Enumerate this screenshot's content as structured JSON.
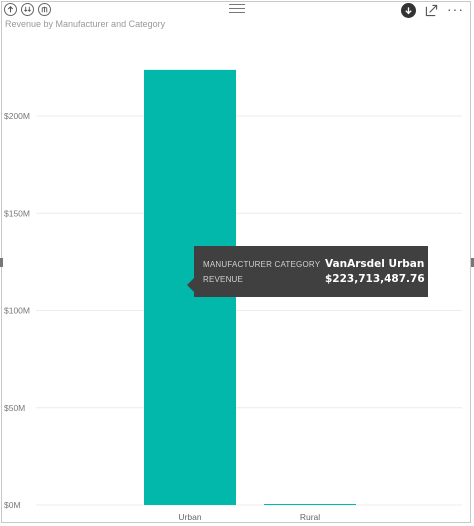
{
  "toolbar": {
    "left_icons": [
      "drill-up-icon",
      "drill-down-all-icon",
      "expand-hierarchy-icon"
    ],
    "right_icons": [
      "drill-mode-icon",
      "focus-mode-icon",
      "more-options-icon"
    ],
    "more_label": "···"
  },
  "chart_data": {
    "type": "bar",
    "title": "Revenue by Manufacturer and Category",
    "categories": [
      "Urban",
      "Rural"
    ],
    "values": [
      223713487.76,
      400000
    ],
    "ylim": [
      0,
      225000000
    ],
    "yticks": [
      0,
      50000000,
      100000000,
      150000000,
      200000000
    ],
    "ytick_labels": [
      "$0M",
      "$50M",
      "$100M",
      "$150M",
      "$200M"
    ],
    "grid": true,
    "bar_color": "#01B8AA",
    "tooltip": {
      "rows": [
        {
          "key": "MANUFACTURER CATEGORY",
          "value": "VanArsdel Urban"
        },
        {
          "key": "REVENUE",
          "value": "$223,713,487.76"
        }
      ]
    }
  }
}
